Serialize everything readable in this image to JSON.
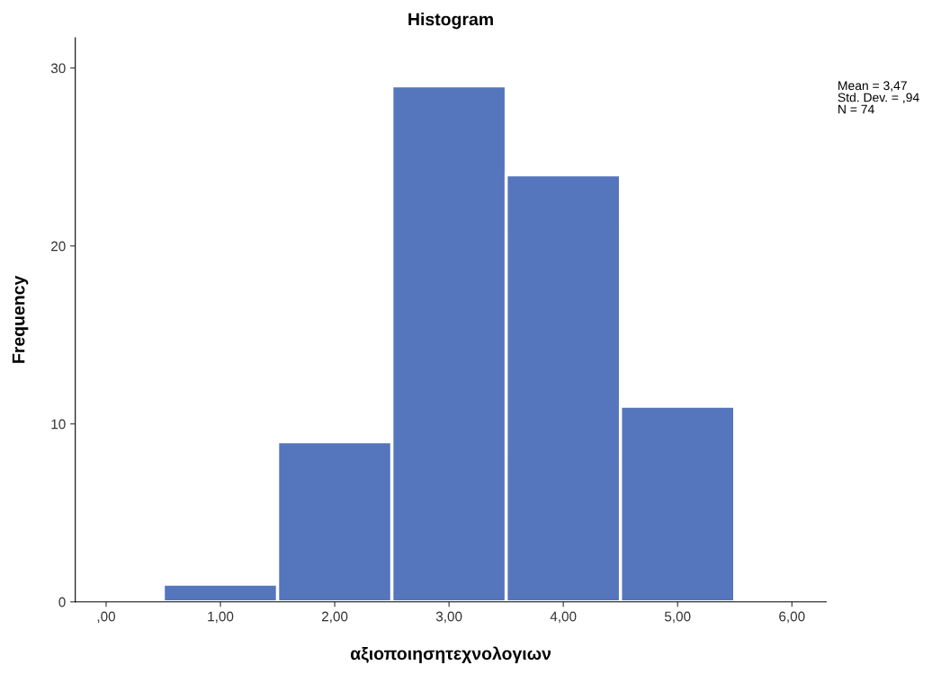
{
  "chart_data": {
    "type": "histogram",
    "title": "Histogram",
    "xlabel": "αξιοποιησητεχνολογιων",
    "ylabel": "Frequency",
    "bins": [
      0.5,
      1.5,
      2.5,
      3.5,
      4.5,
      5.5
    ],
    "values": [
      1,
      9,
      29,
      24,
      11
    ],
    "color": "#5575bd",
    "xlim": [
      -0.27,
      6.3
    ],
    "ylim": [
      0,
      31.7
    ],
    "xticks": [
      {
        "value": 0,
        "label": ",00"
      },
      {
        "value": 1,
        "label": "1,00"
      },
      {
        "value": 2,
        "label": "2,00"
      },
      {
        "value": 3,
        "label": "3,00"
      },
      {
        "value": 4,
        "label": "4,00"
      },
      {
        "value": 5,
        "label": "5,00"
      },
      {
        "value": 6,
        "label": "6,00"
      }
    ],
    "yticks": [
      0,
      10,
      20,
      30
    ],
    "grid": false,
    "legend": false,
    "annotations": [
      "Mean = 3,47",
      "Std. Dev. = ,94",
      "N = 74"
    ]
  }
}
